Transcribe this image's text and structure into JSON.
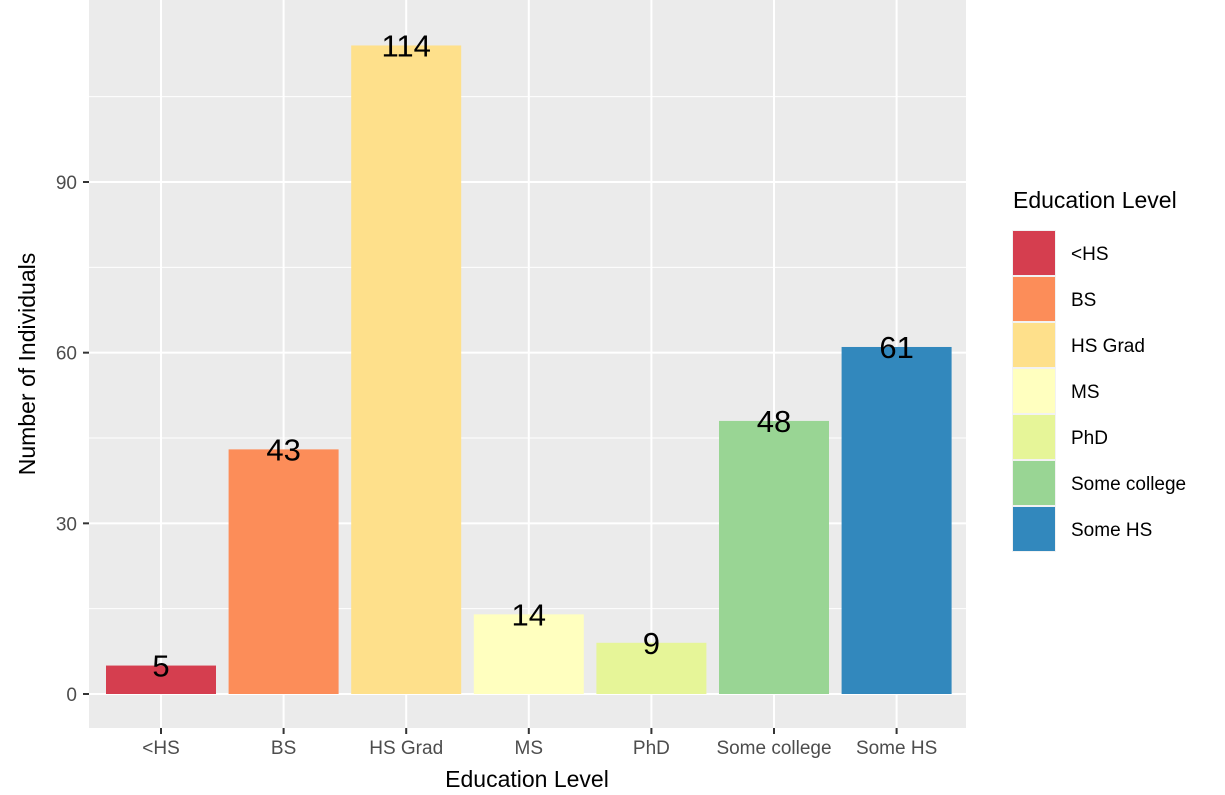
{
  "chart_data": {
    "type": "bar",
    "title": "",
    "xlabel": "Education Level",
    "ylabel": "Number of Individuals",
    "categories": [
      "<HS",
      "BS",
      "HS Grad",
      "MS",
      "PhD",
      "Some college",
      "Some HS"
    ],
    "values": [
      5,
      43,
      114,
      14,
      9,
      48,
      61
    ],
    "colors": [
      "#D53E4F",
      "#FC8D59",
      "#FEE08B",
      "#FFFFBF",
      "#E6F598",
      "#99D594",
      "#3288BD"
    ],
    "ylim": [
      0,
      119.45
    ],
    "y_ticks": [
      0,
      30,
      60,
      90
    ],
    "y_tick_labels": [
      "0",
      "30",
      "60",
      "90"
    ],
    "grid": true,
    "panel_background": "#EBEBEB",
    "grid_color": "#FFFFFF",
    "legend": {
      "title": "Education Level",
      "position": "right",
      "entries": [
        "<HS",
        "BS",
        "HS Grad",
        "MS",
        "PhD",
        "Some college",
        "Some HS"
      ]
    }
  }
}
